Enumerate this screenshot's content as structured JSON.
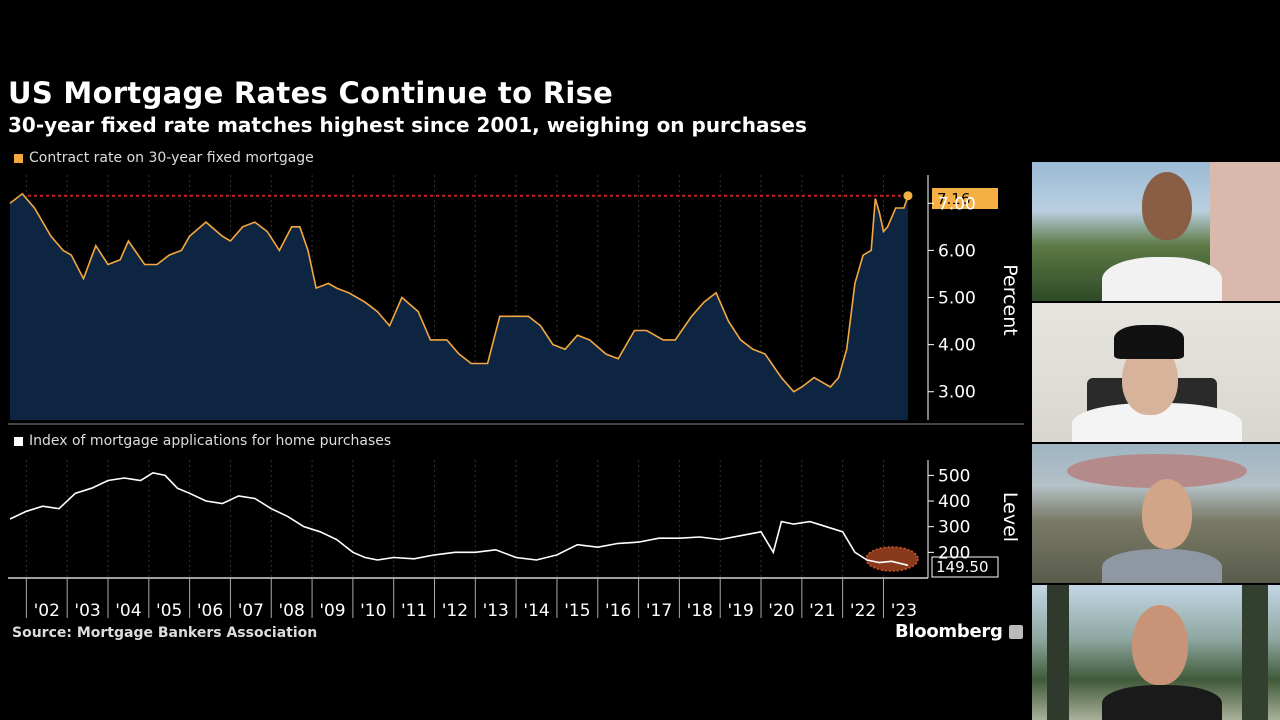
{
  "title": "US Mortgage Rates Continue to Rise",
  "subtitle": "30-year fixed rate matches highest since 2001, weighing on purchases",
  "source": "Source: Mortgage Bankers Association",
  "brand": "Bloomberg",
  "colors": {
    "rate_line": "#f5a83f",
    "rate_area": "#0d2540",
    "apps_line": "#ffffff",
    "highlight": "#d4542a",
    "ref_line": "#c8201f",
    "callout_bg": "#f5b045"
  },
  "chart_data": [
    {
      "type": "area",
      "legend": "Contract rate on 30-year fixed mortgage",
      "ylabel": "Percent",
      "ylim": [
        2.4,
        7.6
      ],
      "yticks": [
        "3.00",
        "4.00",
        "5.00",
        "6.00",
        "7.00"
      ],
      "last_value_label": "7.16",
      "reference_line": 7.16,
      "x": [
        2001.6,
        2001.9,
        2002.2,
        2002.6,
        2002.9,
        2003.1,
        2003.4,
        2003.7,
        2004.0,
        2004.3,
        2004.5,
        2004.9,
        2005.2,
        2005.5,
        2005.8,
        2006.0,
        2006.4,
        2006.8,
        2007.0,
        2007.3,
        2007.6,
        2007.9,
        2008.2,
        2008.5,
        2008.7,
        2008.9,
        2009.1,
        2009.4,
        2009.6,
        2009.9,
        2010.3,
        2010.6,
        2010.9,
        2011.2,
        2011.6,
        2011.9,
        2012.3,
        2012.6,
        2012.9,
        2013.3,
        2013.6,
        2013.9,
        2014.3,
        2014.6,
        2014.9,
        2015.2,
        2015.5,
        2015.8,
        2016.2,
        2016.5,
        2016.9,
        2017.2,
        2017.6,
        2017.9,
        2018.3,
        2018.6,
        2018.9,
        2019.2,
        2019.5,
        2019.8,
        2020.1,
        2020.5,
        2020.8,
        2021.0,
        2021.3,
        2021.7,
        2021.9,
        2022.1,
        2022.3,
        2022.5,
        2022.7,
        2022.8,
        2022.9,
        2023.0,
        2023.1,
        2023.3,
        2023.5,
        2023.6
      ],
      "y": [
        7.0,
        7.2,
        6.9,
        6.3,
        6.0,
        5.9,
        5.4,
        6.1,
        5.7,
        5.8,
        6.2,
        5.7,
        5.7,
        5.9,
        6.0,
        6.3,
        6.6,
        6.3,
        6.2,
        6.5,
        6.6,
        6.4,
        6.0,
        6.5,
        6.5,
        6.0,
        5.2,
        5.3,
        5.2,
        5.1,
        4.9,
        4.7,
        4.4,
        5.0,
        4.7,
        4.1,
        4.1,
        3.8,
        3.6,
        3.6,
        4.6,
        4.6,
        4.6,
        4.4,
        4.0,
        3.9,
        4.2,
        4.1,
        3.8,
        3.7,
        4.3,
        4.3,
        4.1,
        4.1,
        4.6,
        4.9,
        5.1,
        4.5,
        4.1,
        3.9,
        3.8,
        3.3,
        3.0,
        3.1,
        3.3,
        3.1,
        3.3,
        3.9,
        5.3,
        5.9,
        6.0,
        7.1,
        6.8,
        6.4,
        6.5,
        6.9,
        6.9,
        7.16
      ]
    },
    {
      "type": "line",
      "legend": "Index of mortgage applications for home purchases",
      "ylabel": "Level",
      "ylim": [
        100,
        560
      ],
      "yticks": [
        "200",
        "300",
        "400",
        "500"
      ],
      "last_value_label": "149.50",
      "x": [
        2001.6,
        2002.0,
        2002.4,
        2002.8,
        2003.2,
        2003.6,
        2004.0,
        2004.4,
        2004.8,
        2005.1,
        2005.4,
        2005.7,
        2006.0,
        2006.4,
        2006.8,
        2007.2,
        2007.6,
        2008.0,
        2008.4,
        2008.8,
        2009.2,
        2009.6,
        2010.0,
        2010.3,
        2010.6,
        2011.0,
        2011.5,
        2012.0,
        2012.5,
        2013.0,
        2013.5,
        2014.0,
        2014.5,
        2015.0,
        2015.5,
        2016.0,
        2016.5,
        2017.0,
        2017.5,
        2018.0,
        2018.5,
        2019.0,
        2019.5,
        2020.0,
        2020.3,
        2020.5,
        2020.8,
        2021.2,
        2021.6,
        2022.0,
        2022.3,
        2022.6,
        2022.9,
        2023.2,
        2023.6
      ],
      "y": [
        330,
        360,
        380,
        370,
        430,
        450,
        480,
        490,
        480,
        510,
        500,
        450,
        430,
        400,
        390,
        420,
        410,
        370,
        340,
        300,
        280,
        250,
        200,
        180,
        170,
        180,
        175,
        190,
        200,
        200,
        210,
        180,
        170,
        190,
        230,
        220,
        235,
        240,
        255,
        255,
        260,
        250,
        265,
        280,
        200,
        320,
        310,
        320,
        300,
        280,
        200,
        170,
        160,
        165,
        149.5
      ]
    }
  ],
  "x_axis": {
    "ticks": [
      "'02",
      "'03",
      "'04",
      "'05",
      "'06",
      "'07",
      "'08",
      "'09",
      "'10",
      "'11",
      "'12",
      "'13",
      "'14",
      "'15",
      "'16",
      "'17",
      "'18",
      "'19",
      "'20",
      "'21",
      "'22",
      "'23"
    ]
  },
  "video_tiles": [
    {
      "name": "tile-1",
      "scene": "garden-villa",
      "person": "man-white-shirt"
    },
    {
      "name": "tile-2",
      "scene": "white-room",
      "person": "man-black-cap"
    },
    {
      "name": "tile-3",
      "scene": "city-spaceship",
      "person": "man-grey-shirt"
    },
    {
      "name": "tile-4",
      "scene": "forest-mountain",
      "person": "man-black-shirt"
    }
  ]
}
